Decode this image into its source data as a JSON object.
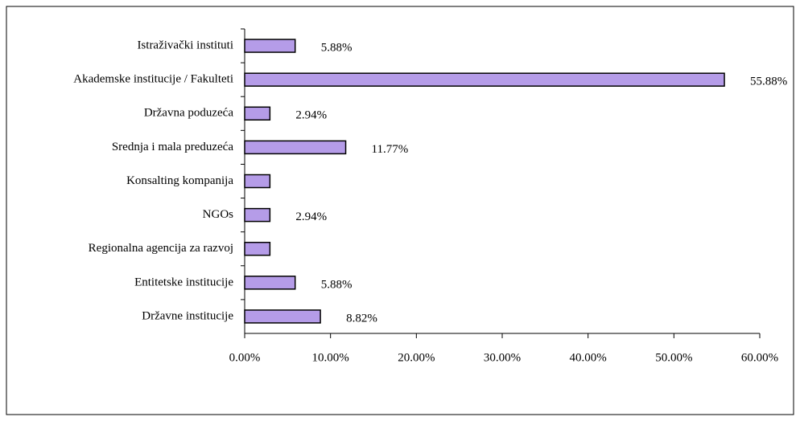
{
  "chart_data": {
    "type": "bar",
    "orientation": "horizontal",
    "categories": [
      "Istraživački instituti",
      "Akademske institucije / Fakulteti",
      "Državna poduzeća",
      "Srednja i mala preduzeća",
      "Konsalting kompanija",
      "NGOs",
      "Regionalna agencija za razvoj",
      "Entitetske institucije",
      "Državne institucije"
    ],
    "values": [
      5.88,
      55.88,
      2.94,
      11.77,
      2.94,
      2.94,
      2.94,
      5.88,
      8.82
    ],
    "value_labels": [
      "5.88%",
      "55.88%",
      "2.94%",
      "11.77%",
      null,
      "2.94%",
      null,
      "5.88%",
      "8.82%"
    ],
    "color": "#b59ce8",
    "xlim": [
      0,
      60
    ],
    "xticks": [
      {
        "value": 0,
        "label": "0.00%"
      },
      {
        "value": 10,
        "label": "10.00%"
      },
      {
        "value": 20,
        "label": "20.00%"
      },
      {
        "value": 30,
        "label": "30.00%"
      },
      {
        "value": 40,
        "label": "40.00%"
      },
      {
        "value": 50,
        "label": "50.00%"
      },
      {
        "value": 60,
        "label": "60.00%"
      }
    ],
    "grid": false
  }
}
